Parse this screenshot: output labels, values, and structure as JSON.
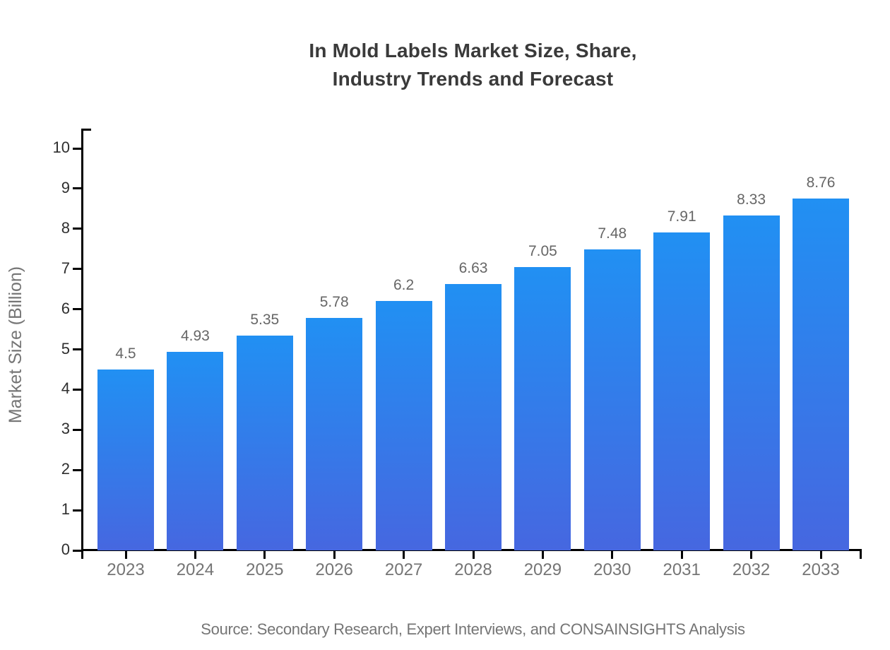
{
  "colors": {
    "background": "#ffffff",
    "axis": "#000000",
    "title_text": "#3a3a3a",
    "value_label_text": "#666666",
    "y_tick_text": "#2e2e2e",
    "x_tick_text": "#757575",
    "y_axis_title_text": "#757575",
    "source_text": "#757575",
    "bar_gradient_top": "#2190f3",
    "bar_gradient_bottom": "#4667e0"
  },
  "chart_data": {
    "type": "bar",
    "title": "In Mold Labels Market Size, Share, Industry Trends and Forecast",
    "title_lines": [
      "In Mold Labels Market Size, Share,",
      "Industry Trends and Forecast"
    ],
    "categories": [
      "2023",
      "2024",
      "2025",
      "2026",
      "2027",
      "2028",
      "2029",
      "2030",
      "2031",
      "2032",
      "2033"
    ],
    "values": [
      4.5,
      4.93,
      5.35,
      5.78,
      6.2,
      6.63,
      7.05,
      7.48,
      7.91,
      8.33,
      8.76
    ],
    "value_labels": [
      "4.5",
      "4.93",
      "5.35",
      "5.78",
      "6.2",
      "6.63",
      "7.05",
      "7.48",
      "7.91",
      "8.33",
      "8.76"
    ],
    "xlabel": "",
    "ylabel": "Market Size (Billion)",
    "ylim": [
      0,
      10
    ],
    "yticks": [
      0,
      1,
      2,
      3,
      4,
      5,
      6,
      7,
      8,
      9,
      10
    ],
    "grid": false,
    "legend": null,
    "bar_gradient": {
      "top": "#2190f3",
      "bottom": "#4667e0"
    },
    "source_note": "Source: Secondary Research, Expert Interviews, and CONSAINSIGHTS Analysis"
  }
}
